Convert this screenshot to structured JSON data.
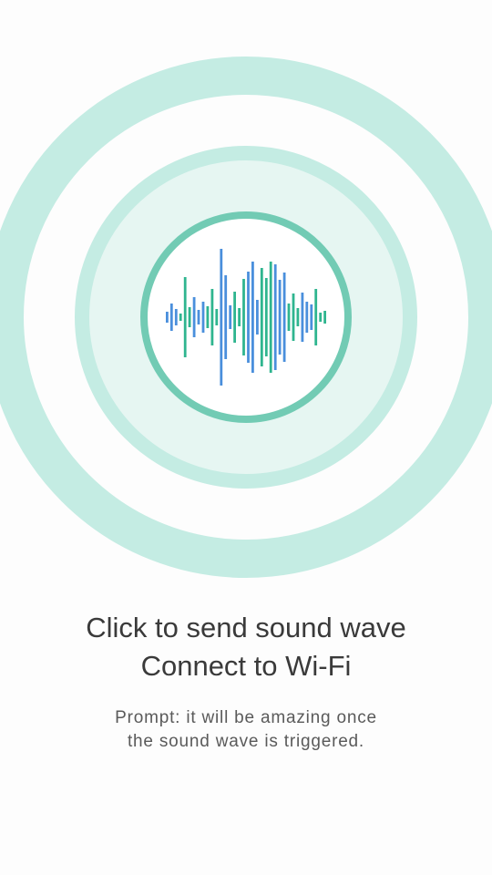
{
  "colors": {
    "outer_ring": "#c4ece3",
    "mid_disc": "#e5f6f2",
    "mid_ring": "#c4ece3",
    "inner_ring": "#72cbb4",
    "bar_blue": "#4a8fdc",
    "bar_red": "#e8505b",
    "bar_orange": "#f2a74b",
    "bar_green": "#2fb58f",
    "bar_purple": "#6b58c8",
    "bar_teal": "#43c0bd"
  },
  "icon": "sound-wave-icon",
  "title": {
    "line1": "Click to send sound wave",
    "line2": "Connect to Wi-Fi"
  },
  "prompt": {
    "line1": "Prompt: it will be amazing once",
    "line2": "the sound wave is triggered."
  }
}
